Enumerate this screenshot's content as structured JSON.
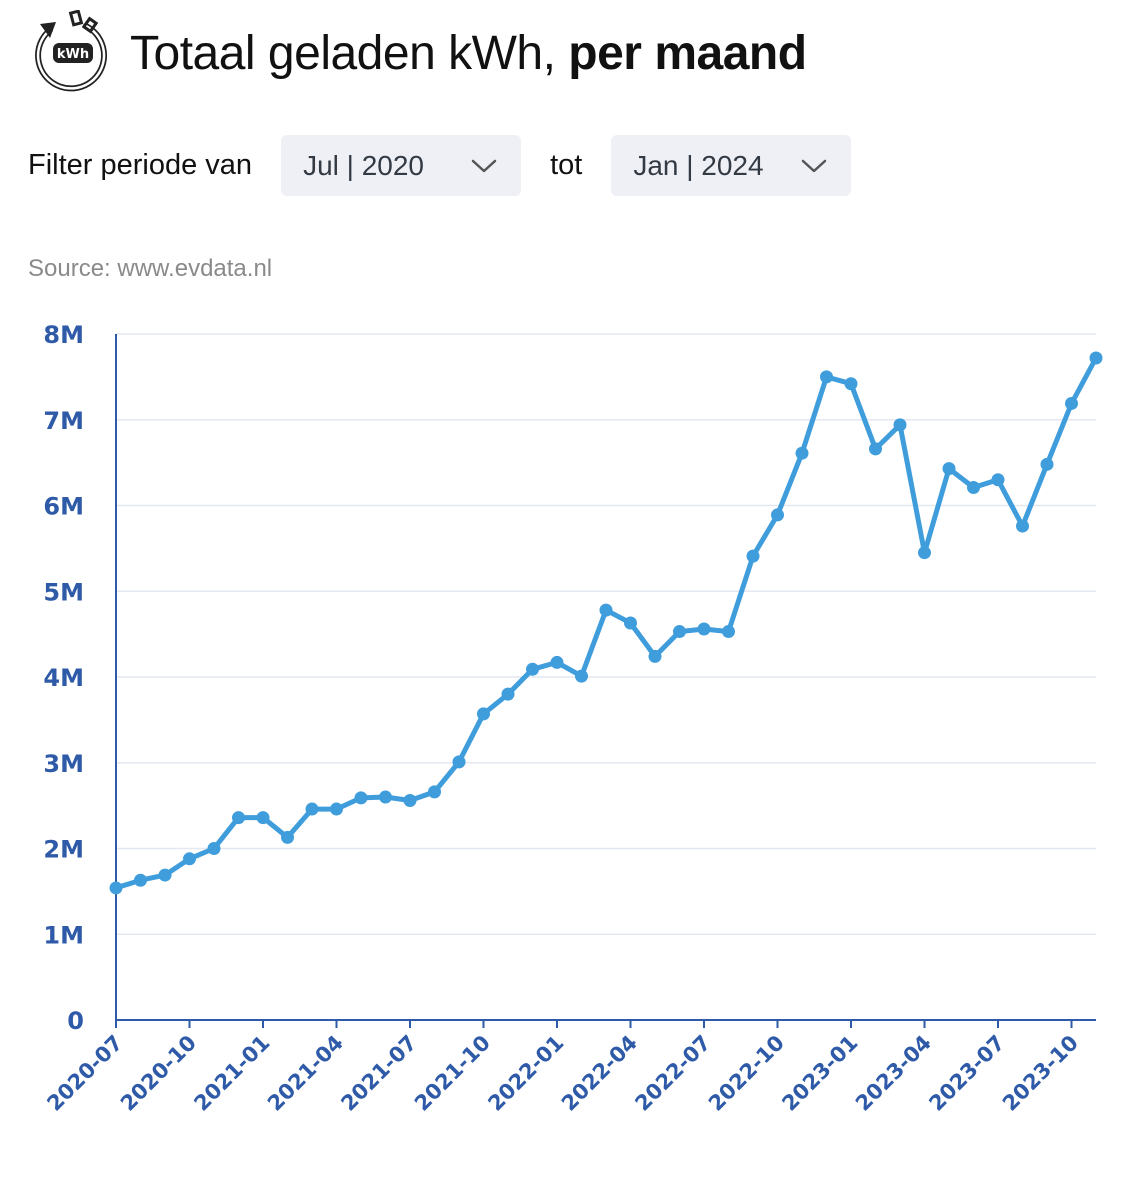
{
  "header": {
    "title_main": "Totaal geladen kWh,",
    "title_bold": "per maand",
    "logo_text": "kWh",
    "logo_icon": "kwh-charge-cycle-icon"
  },
  "filter": {
    "label": "Filter periode van",
    "from_value": "Jul | 2020",
    "to_label": "tot",
    "to_value": "Jan | 2024"
  },
  "source": "Source: www.evdata.nl",
  "colors": {
    "line": "#3f9ddc",
    "axis": "#2e5aa8",
    "grid": "#e3e7f0",
    "select_bg": "#eef0f6"
  },
  "chart_data": {
    "type": "line",
    "title": "",
    "xlabel": "",
    "ylabel": "",
    "ylim": [
      0,
      8000000
    ],
    "yticks": [
      0,
      1000000,
      2000000,
      3000000,
      4000000,
      5000000,
      6000000,
      7000000,
      8000000
    ],
    "ytick_labels": [
      "0",
      "1M",
      "2M",
      "3M",
      "4M",
      "5M",
      "6M",
      "7M",
      "8M"
    ],
    "xtick_labels": [
      "2020-07",
      "2020-10",
      "2021-01",
      "2021-04",
      "2021-07",
      "2021-10",
      "2022-01",
      "2022-04",
      "2022-07",
      "2022-10",
      "2023-01",
      "2023-04",
      "2023-07",
      "2023-10"
    ],
    "grid": true,
    "x": [
      "2020-07",
      "2020-08",
      "2020-09",
      "2020-10",
      "2020-11",
      "2020-12",
      "2021-01",
      "2021-02",
      "2021-03",
      "2021-04",
      "2021-05",
      "2021-06",
      "2021-07",
      "2021-08",
      "2021-09",
      "2021-10",
      "2021-11",
      "2021-12",
      "2022-01",
      "2022-02",
      "2022-03",
      "2022-04",
      "2022-05",
      "2022-06",
      "2022-07",
      "2022-08",
      "2022-09",
      "2022-10",
      "2022-11",
      "2022-12",
      "2023-01",
      "2023-02",
      "2023-03",
      "2023-04",
      "2023-05",
      "2023-06",
      "2023-07",
      "2023-08",
      "2023-09",
      "2023-10",
      "2023-11"
    ],
    "series": [
      {
        "values": [
          1540000,
          1630000,
          1690000,
          1880000,
          2000000,
          2360000,
          2360000,
          2130000,
          2460000,
          2460000,
          2590000,
          2600000,
          2560000,
          2660000,
          3010000,
          3570000,
          3800000,
          4090000,
          4170000,
          4010000,
          4780000,
          4630000,
          4240000,
          4530000,
          4560000,
          4530000,
          5410000,
          5890000,
          6610000,
          7500000,
          7420000,
          6660000,
          6940000,
          5450000,
          6430000,
          6210000,
          6300000,
          5760000,
          6480000,
          7190000,
          7720000
        ]
      }
    ]
  }
}
